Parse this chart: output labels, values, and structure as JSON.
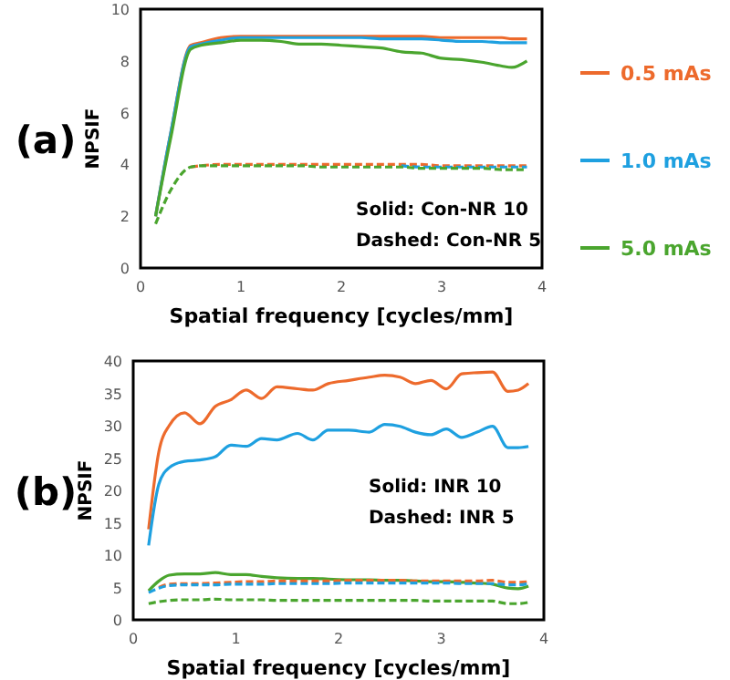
{
  "chart_data": [
    {
      "type": "line",
      "title": "(a)",
      "xlabel": "Spatial frequency [cycles/mm]",
      "ylabel": "NPSIF",
      "xlim": [
        0,
        4
      ],
      "ylim": [
        0,
        10
      ],
      "xticks": [
        0,
        1,
        2,
        3,
        4
      ],
      "yticks": [
        0,
        2,
        4,
        6,
        8,
        10
      ],
      "legend": "right",
      "annotations": [
        "Solid: Con-NR 10",
        "Dashed: Con-NR 5"
      ],
      "x": [
        0.15,
        0.3,
        0.5,
        0.6,
        0.8,
        1,
        1.2,
        1.4,
        1.6,
        1.8,
        2,
        2.2,
        2.4,
        2.6,
        2.8,
        3,
        3.2,
        3.4,
        3.6,
        3.7,
        3.85
      ],
      "series": [
        {
          "name": "0.5 mAs",
          "color": "#ed6a2c",
          "line_style": "solid",
          "values": [
            2,
            5.2,
            8.6,
            8.7,
            8.9,
            8.95,
            8.95,
            8.95,
            8.95,
            8.95,
            8.95,
            8.95,
            8.95,
            8.95,
            8.95,
            8.9,
            8.9,
            8.9,
            8.9,
            8.85,
            8.85
          ]
        },
        {
          "name": "1.0 mAs",
          "color": "#1ea0e0",
          "line_style": "solid",
          "values": [
            2,
            5.2,
            8.55,
            8.65,
            8.8,
            8.9,
            8.9,
            8.9,
            8.9,
            8.9,
            8.9,
            8.9,
            8.85,
            8.85,
            8.85,
            8.8,
            8.75,
            8.75,
            8.7,
            8.7,
            8.7
          ]
        },
        {
          "name": "5.0 mAs",
          "color": "#4aa52e",
          "line_style": "solid",
          "values": [
            2,
            5,
            8.45,
            8.6,
            8.7,
            8.8,
            8.8,
            8.75,
            8.65,
            8.65,
            8.6,
            8.55,
            8.5,
            8.35,
            8.3,
            8.1,
            8.05,
            7.95,
            7.8,
            7.75,
            8
          ]
        },
        {
          "color": "#ed6a2c",
          "line_style": "dashed",
          "values": [
            null,
            null,
            3.9,
            3.95,
            4,
            4,
            4,
            4,
            4,
            4,
            4,
            4,
            4,
            4,
            4,
            3.95,
            3.95,
            3.95,
            3.95,
            3.95,
            3.95
          ]
        },
        {
          "color": "#1ea0e0",
          "line_style": "dashed",
          "values": [
            null,
            null,
            null,
            null,
            null,
            null,
            null,
            null,
            null,
            null,
            null,
            null,
            null,
            3.95,
            3.9,
            3.9,
            3.9,
            3.9,
            3.9,
            3.9,
            3.9
          ]
        },
        {
          "color": "#4aa52e",
          "line_style": "dashed",
          "values": [
            1.7,
            3,
            3.9,
            3.95,
            3.95,
            3.95,
            3.95,
            3.95,
            3.95,
            3.9,
            3.9,
            3.9,
            3.9,
            3.9,
            3.85,
            3.85,
            3.85,
            3.85,
            3.8,
            3.8,
            3.8
          ]
        }
      ]
    },
    {
      "type": "line",
      "title": "(b)",
      "xlabel": "Spatial frequency [cycles/mm]",
      "ylabel": "NPSIF",
      "xlim": [
        0,
        4
      ],
      "ylim": [
        0,
        40
      ],
      "xticks": [
        0,
        1,
        2,
        3,
        4
      ],
      "yticks": [
        0,
        5,
        10,
        15,
        20,
        25,
        30,
        35,
        40
      ],
      "annotations": [
        "Solid: INR 10",
        "Dashed: INR 5"
      ],
      "x": [
        0.15,
        0.25,
        0.35,
        0.5,
        0.65,
        0.8,
        0.95,
        1.1,
        1.25,
        1.4,
        1.6,
        1.75,
        1.9,
        2.1,
        2.3,
        2.45,
        2.6,
        2.75,
        2.9,
        3.05,
        3.2,
        3.35,
        3.5,
        3.65,
        3.75,
        3.85
      ],
      "series": [
        {
          "color": "#ed6a2c",
          "line_style": "solid",
          "values": [
            14,
            26,
            30,
            32,
            30.3,
            33,
            34,
            35.5,
            34.2,
            36,
            35.7,
            35.5,
            36.5,
            37,
            37.5,
            37.8,
            37.5,
            36.5,
            37,
            35.7,
            38,
            38.2,
            38.3,
            35.3,
            35.5,
            36.5
          ]
        },
        {
          "color": "#1ea0e0",
          "line_style": "solid",
          "values": [
            11.5,
            21,
            23.5,
            24.5,
            24.7,
            25.2,
            27,
            26.8,
            28,
            27.8,
            28.8,
            27.8,
            29.3,
            29.3,
            29,
            30.2,
            29.9,
            29,
            28.6,
            29.5,
            28.2,
            29,
            29.9,
            26.6,
            26.6,
            26.8
          ]
        },
        {
          "color": "#4aa52e",
          "line_style": "solid",
          "values": [
            4.5,
            6,
            6.9,
            7.1,
            7.1,
            7.3,
            7,
            7,
            6.7,
            6.5,
            6.4,
            6.4,
            6.3,
            6.2,
            6.2,
            6.1,
            6.1,
            6,
            5.9,
            5.9,
            5.8,
            5.7,
            5.5,
            4.9,
            4.8,
            5.2
          ]
        },
        {
          "color": "#ed6a2c",
          "line_style": "dashed",
          "values": [
            null,
            5,
            5.5,
            5.6,
            5.6,
            5.7,
            5.8,
            5.9,
            5.9,
            6,
            6,
            6,
            6,
            6.1,
            6.1,
            6.1,
            6.1,
            6,
            6,
            6,
            6,
            6,
            6.1,
            5.8,
            5.8,
            5.9
          ]
        },
        {
          "color": "#1ea0e0",
          "line_style": "dashed",
          "values": [
            4.2,
            4.9,
            5.3,
            5.4,
            5.4,
            5.4,
            5.5,
            5.5,
            5.5,
            5.6,
            5.6,
            5.6,
            5.6,
            5.7,
            5.7,
            5.7,
            5.7,
            5.7,
            5.7,
            5.7,
            5.6,
            5.6,
            5.6,
            5.4,
            5.4,
            5.6
          ]
        },
        {
          "color": "#4aa52e",
          "line_style": "dashed",
          "values": [
            2.5,
            2.8,
            3,
            3.1,
            3.1,
            3.2,
            3.1,
            3.1,
            3.1,
            3,
            3,
            3,
            3,
            3,
            3,
            3,
            3,
            3,
            2.9,
            2.9,
            2.9,
            2.9,
            2.9,
            2.5,
            2.5,
            2.7
          ]
        }
      ]
    }
  ]
}
